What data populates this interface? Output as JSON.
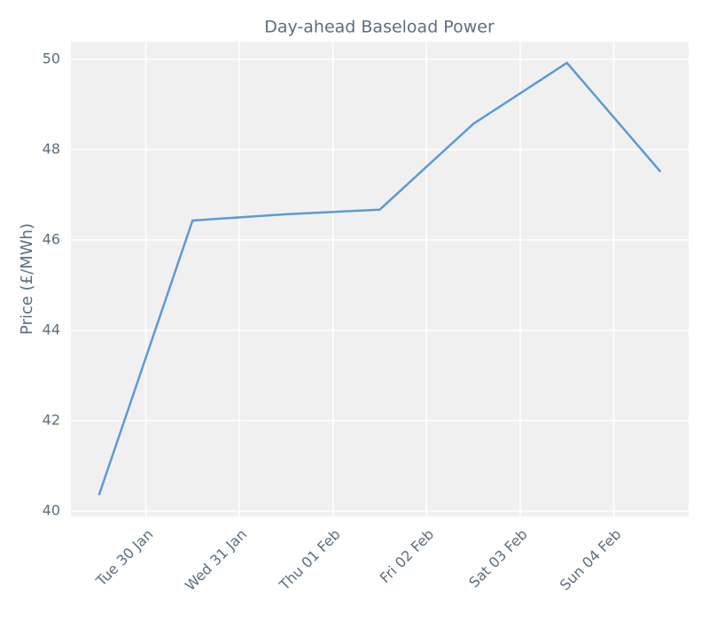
{
  "chart_data": {
    "type": "line",
    "title": "Day-ahead Baseload Power",
    "y_label": "Price (£/MWh)",
    "x": [
      0,
      1,
      2,
      3,
      4,
      5,
      6
    ],
    "series": [
      {
        "name": "Day-ahead Baseload Power",
        "color": "#5b9bd5",
        "values": [
          40.35,
          46.43,
          46.57,
          46.67,
          48.57,
          49.92,
          47.51
        ]
      }
    ],
    "xlim": [
      -0.3,
      6.3
    ],
    "xticks": [
      {
        "value": 0.5,
        "label": "Tue 30 Jan"
      },
      {
        "value": 1.5,
        "label": "Wed 31 Jan"
      },
      {
        "value": 2.5,
        "label": "Thu 01 Feb"
      },
      {
        "value": 3.5,
        "label": "Fri 02 Feb"
      },
      {
        "value": 4.5,
        "label": "Sat 03 Feb"
      },
      {
        "value": 5.5,
        "label": "Sun 04 Feb"
      }
    ],
    "ylim": [
      39.88,
      50.39
    ],
    "yticks": [
      40,
      42,
      44,
      46,
      48,
      50
    ],
    "grid": true
  }
}
